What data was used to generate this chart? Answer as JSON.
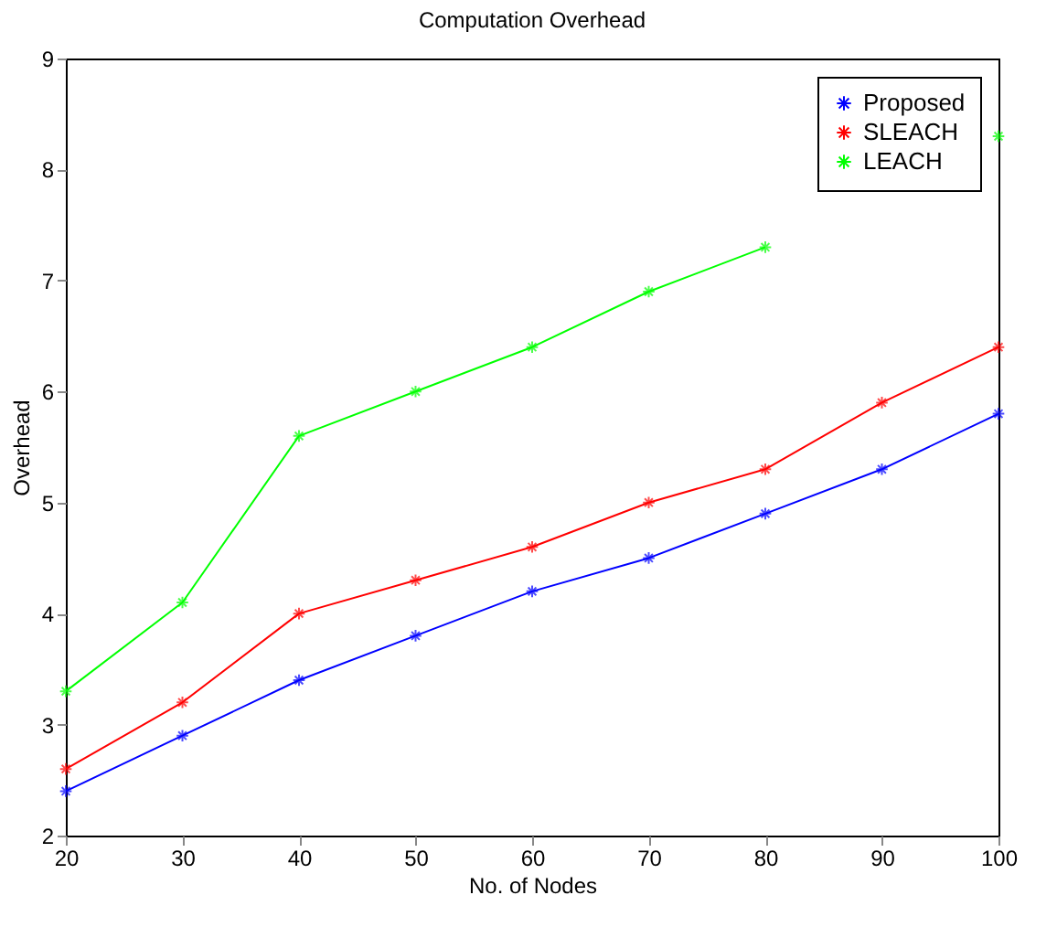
{
  "chart_data": {
    "type": "line",
    "title": "Computation Overhead",
    "xlabel": "No. of Nodes",
    "ylabel": "Overhead",
    "x": [
      20,
      30,
      40,
      50,
      60,
      70,
      80,
      90,
      100
    ],
    "series": [
      {
        "name": "Proposed",
        "color": "#0000ff",
        "values": [
          2.4,
          2.9,
          3.4,
          3.8,
          4.2,
          4.5,
          4.9,
          5.3,
          5.8
        ]
      },
      {
        "name": "SLEACH",
        "color": "#ff0000",
        "values": [
          2.6,
          3.2,
          4.0,
          4.3,
          4.6,
          5.0,
          5.3,
          5.9,
          6.4
        ]
      },
      {
        "name": "LEACH",
        "color": "#00ff00",
        "values": [
          3.3,
          4.1,
          5.6,
          6.0,
          6.4,
          6.9,
          7.3,
          null,
          8.3
        ]
      }
    ],
    "xlim": [
      20,
      100
    ],
    "xticks": [
      20,
      30,
      40,
      50,
      60,
      70,
      80,
      90,
      100
    ],
    "ylim": [
      2,
      9
    ],
    "yticks": [
      2,
      3,
      4,
      5,
      6,
      7,
      8,
      9
    ],
    "grid": false,
    "legend": "top right",
    "marker": "cross",
    "line_style": "solid"
  }
}
